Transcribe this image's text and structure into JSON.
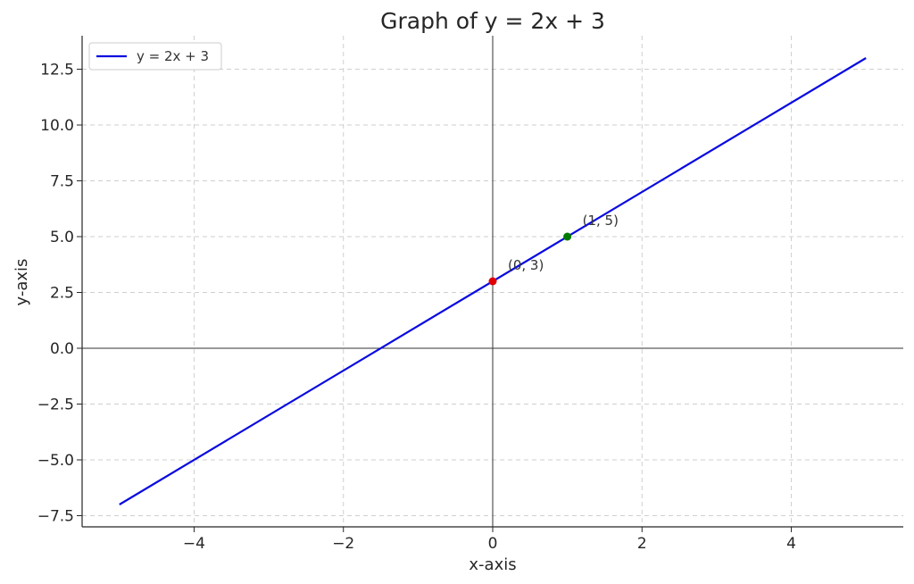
{
  "chart_data": {
    "type": "line",
    "title": "Graph of y = 2x + 3",
    "xlabel": "x-axis",
    "ylabel": "y-axis",
    "xlim": [
      -5.5,
      5.5
    ],
    "ylim": [
      -8,
      14
    ],
    "xticks": [
      -4,
      -2,
      0,
      2,
      4
    ],
    "xtick_labels": [
      "−4",
      "−2",
      "0",
      "2",
      "4"
    ],
    "yticks": [
      -7.5,
      -5,
      -2.5,
      0,
      2.5,
      5,
      7.5,
      10,
      12.5
    ],
    "ytick_labels": [
      "−7.5",
      "−5.0",
      "−2.5",
      "0.0",
      "2.5",
      "5.0",
      "7.5",
      "10.0",
      "12.5"
    ],
    "grid": true,
    "legend_position": "top-left",
    "series": [
      {
        "name": "y = 2x + 3",
        "color": "#0a0ae0",
        "x": [
          -5,
          5
        ],
        "y": [
          -7,
          13
        ]
      }
    ],
    "points": [
      {
        "x": 0,
        "y": 3,
        "label": "(0, 3)",
        "color": "#e00000"
      },
      {
        "x": 1,
        "y": 5,
        "label": "(1, 5)",
        "color": "#007a00"
      }
    ],
    "reference_lines": {
      "x0": true,
      "y0": true
    }
  }
}
